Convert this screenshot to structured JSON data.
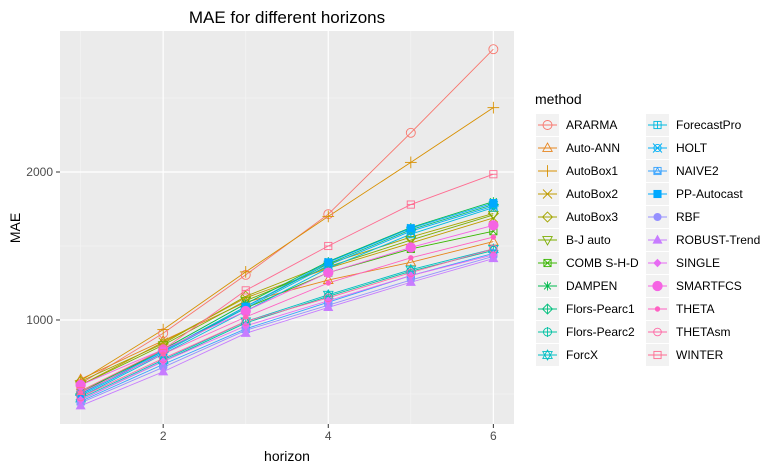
{
  "chart_data": {
    "type": "line",
    "title": "MAE for different horizons",
    "xlabel": "horizon",
    "ylabel": "MAE",
    "xlim": [
      0.75,
      6.25
    ],
    "ylim": [
      297,
      2953
    ],
    "x_ticks": [
      2,
      4,
      6
    ],
    "x_tick_labels": [
      "2",
      "4",
      "6"
    ],
    "y_ticks": [
      1000,
      2000
    ],
    "y_tick_labels": [
      "1000",
      "2000"
    ],
    "grid": true,
    "legend_title": "method",
    "legend_position": "right",
    "x": [
      1,
      2,
      3,
      4,
      5,
      6
    ],
    "series": [
      {
        "name": "ARARMA",
        "color": "#F8766D",
        "shape": "circle-open",
        "values": [
          570,
          910,
          1305,
          1715,
          2265,
          2830
        ]
      },
      {
        "name": "Auto-ANN",
        "color": "#E7851E",
        "shape": "triangle-open",
        "values": [
          600,
          860,
          1120,
          1270,
          1390,
          1530
        ]
      },
      {
        "name": "AutoBox1",
        "color": "#D89000",
        "shape": "plus",
        "values": [
          590,
          935,
          1325,
          1700,
          2065,
          2435
        ]
      },
      {
        "name": "AutoBox2",
        "color": "#C09B00",
        "shape": "cross",
        "values": [
          560,
          850,
          1150,
          1350,
          1520,
          1690
        ]
      },
      {
        "name": "AutoBox3",
        "color": "#A3A500",
        "shape": "diamond-open",
        "values": [
          585,
          840,
          1160,
          1380,
          1560,
          1720
        ]
      },
      {
        "name": "B-J auto",
        "color": "#7CAE00",
        "shape": "triangle-down-open",
        "values": [
          560,
          830,
          1130,
          1360,
          1540,
          1710
        ]
      },
      {
        "name": "COMB S-H-D",
        "color": "#39B600",
        "shape": "square-cross",
        "values": [
          520,
          790,
          1080,
          1320,
          1480,
          1600
        ]
      },
      {
        "name": "DAMPEN",
        "color": "#00BB4E",
        "shape": "asterisk",
        "values": [
          510,
          800,
          1110,
          1395,
          1625,
          1800
        ]
      },
      {
        "name": "Flors-Pearc1",
        "color": "#00BF7D",
        "shape": "diamond-plus",
        "values": [
          500,
          790,
          1090,
          1380,
          1610,
          1780
        ]
      },
      {
        "name": "Flors-Pearc2",
        "color": "#00C1A3",
        "shape": "circle-plus",
        "values": [
          460,
          720,
          980,
          1160,
          1330,
          1470
        ]
      },
      {
        "name": "ForcX",
        "color": "#00BFC4",
        "shape": "star-of-david",
        "values": [
          470,
          730,
          990,
          1170,
          1340,
          1480
        ]
      },
      {
        "name": "ForecastPro",
        "color": "#00BAE0",
        "shape": "square-plus",
        "values": [
          480,
          770,
          1060,
          1350,
          1580,
          1760
        ]
      },
      {
        "name": "HOLT",
        "color": "#00B0F6",
        "shape": "circle-cross",
        "values": [
          490,
          780,
          1080,
          1370,
          1600,
          1770
        ]
      },
      {
        "name": "NAIVE2",
        "color": "#35A2FF",
        "shape": "square-triangle",
        "values": [
          450,
          700,
          940,
          1120,
          1300,
          1450
        ]
      },
      {
        "name": "PP-Autocast",
        "color": "#00A9FF",
        "shape": "square-filled",
        "values": [
          500,
          790,
          1090,
          1390,
          1620,
          1790
        ]
      },
      {
        "name": "RBF",
        "color": "#9590FF",
        "shape": "circle-filled",
        "values": [
          440,
          680,
          930,
          1100,
          1270,
          1430
        ]
      },
      {
        "name": "ROBUST-Trend",
        "color": "#C77CFF",
        "shape": "triangle-filled",
        "values": [
          420,
          650,
          910,
          1085,
          1255,
          1415
        ]
      },
      {
        "name": "SINGLE",
        "color": "#E76BF3",
        "shape": "diamond-filled",
        "values": [
          460,
          720,
          960,
          1130,
          1300,
          1440
        ]
      },
      {
        "name": "SMARTFCS",
        "color": "#F564E3",
        "shape": "circle-filled-big",
        "values": [
          560,
          800,
          1060,
          1320,
          1490,
          1640
        ]
      },
      {
        "name": "THETA",
        "color": "#FF61C3",
        "shape": "dot",
        "values": [
          510,
          770,
          1020,
          1250,
          1420,
          1560
        ]
      },
      {
        "name": "THETAsm",
        "color": "#FF67A4",
        "shape": "circle-open-small",
        "values": [
          480,
          740,
          990,
          1150,
          1320,
          1480
        ]
      },
      {
        "name": "WINTER",
        "color": "#FF6C91",
        "shape": "square-minus",
        "values": [
          520,
          800,
          1200,
          1500,
          1780,
          1985
        ]
      }
    ]
  }
}
